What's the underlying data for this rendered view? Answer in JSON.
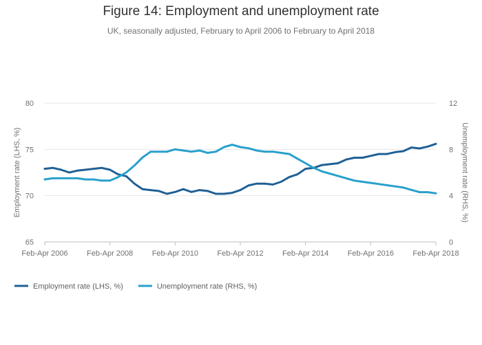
{
  "chart_data": {
    "type": "line",
    "title": "Figure 14: Employment and unemployment rate",
    "subtitle": "UK, seasonally adjusted, February to April 2006 to February to April 2018",
    "ylabel_left": "Employment rate (LHS, %)",
    "ylabel_right": "Unemployment rate (RHS, %)",
    "x_range": [
      2006,
      2018
    ],
    "ylim_left": [
      65,
      80
    ],
    "ylim_right": [
      0,
      12
    ],
    "yticks_left": [
      65,
      70,
      75,
      80
    ],
    "yticks_right": [
      0,
      4,
      8,
      12
    ],
    "x_ticks": [
      {
        "value": 2006,
        "label": "Feb-Apr 2006"
      },
      {
        "value": 2008,
        "label": "Feb-Apr 2008"
      },
      {
        "value": 2010,
        "label": "Feb-Apr 2010"
      },
      {
        "value": 2012,
        "label": "Feb-Apr 2012"
      },
      {
        "value": 2014,
        "label": "Feb-Apr 2014"
      },
      {
        "value": 2016,
        "label": "Feb-Apr 2016"
      },
      {
        "value": 2018,
        "label": "Feb-Apr 2018"
      }
    ],
    "grid": true,
    "legend_position": "bottom-left",
    "series": [
      {
        "name": "Employment rate (LHS, %)",
        "axis": "left",
        "color": "#206095",
        "x": [
          2006.0,
          2006.25,
          2006.5,
          2006.75,
          2007.0,
          2007.25,
          2007.5,
          2007.75,
          2008.0,
          2008.25,
          2008.5,
          2008.75,
          2009.0,
          2009.25,
          2009.5,
          2009.75,
          2010.0,
          2010.25,
          2010.5,
          2010.75,
          2011.0,
          2011.25,
          2011.5,
          2011.75,
          2012.0,
          2012.25,
          2012.5,
          2012.75,
          2013.0,
          2013.25,
          2013.5,
          2013.75,
          2014.0,
          2014.25,
          2014.5,
          2014.75,
          2015.0,
          2015.25,
          2015.5,
          2015.75,
          2016.0,
          2016.25,
          2016.5,
          2016.75,
          2017.0,
          2017.25,
          2017.5,
          2017.75,
          2018.0
        ],
        "values": [
          72.9,
          73.0,
          72.8,
          72.5,
          72.7,
          72.8,
          72.9,
          73.0,
          72.8,
          72.3,
          72.1,
          71.3,
          70.7,
          70.6,
          70.5,
          70.2,
          70.4,
          70.7,
          70.4,
          70.6,
          70.5,
          70.2,
          70.2,
          70.3,
          70.6,
          71.1,
          71.3,
          71.3,
          71.2,
          71.5,
          72.0,
          72.3,
          72.9,
          73.0,
          73.3,
          73.4,
          73.5,
          73.9,
          74.1,
          74.1,
          74.3,
          74.5,
          74.5,
          74.7,
          74.8,
          75.2,
          75.1,
          75.3,
          75.6
        ]
      },
      {
        "name": "Unemployment rate (RHS, %)",
        "axis": "right",
        "color": "#27a0cc",
        "x": [
          2006.0,
          2006.25,
          2006.5,
          2006.75,
          2007.0,
          2007.25,
          2007.5,
          2007.75,
          2008.0,
          2008.25,
          2008.5,
          2008.75,
          2009.0,
          2009.25,
          2009.5,
          2009.75,
          2010.0,
          2010.25,
          2010.5,
          2010.75,
          2011.0,
          2011.25,
          2011.5,
          2011.75,
          2012.0,
          2012.25,
          2012.5,
          2012.75,
          2013.0,
          2013.25,
          2013.5,
          2013.75,
          2014.0,
          2014.25,
          2014.5,
          2014.75,
          2015.0,
          2015.25,
          2015.5,
          2015.75,
          2016.0,
          2016.25,
          2016.5,
          2016.75,
          2017.0,
          2017.25,
          2017.5,
          2017.75,
          2018.0
        ],
        "values": [
          5.4,
          5.5,
          5.5,
          5.5,
          5.5,
          5.4,
          5.4,
          5.3,
          5.3,
          5.6,
          6.0,
          6.6,
          7.3,
          7.8,
          7.8,
          7.8,
          8.0,
          7.9,
          7.8,
          7.9,
          7.7,
          7.8,
          8.2,
          8.4,
          8.2,
          8.1,
          7.9,
          7.8,
          7.8,
          7.7,
          7.6,
          7.2,
          6.8,
          6.4,
          6.1,
          5.9,
          5.7,
          5.5,
          5.3,
          5.2,
          5.1,
          5.0,
          4.9,
          4.8,
          4.7,
          4.5,
          4.3,
          4.3,
          4.2
        ]
      }
    ]
  }
}
